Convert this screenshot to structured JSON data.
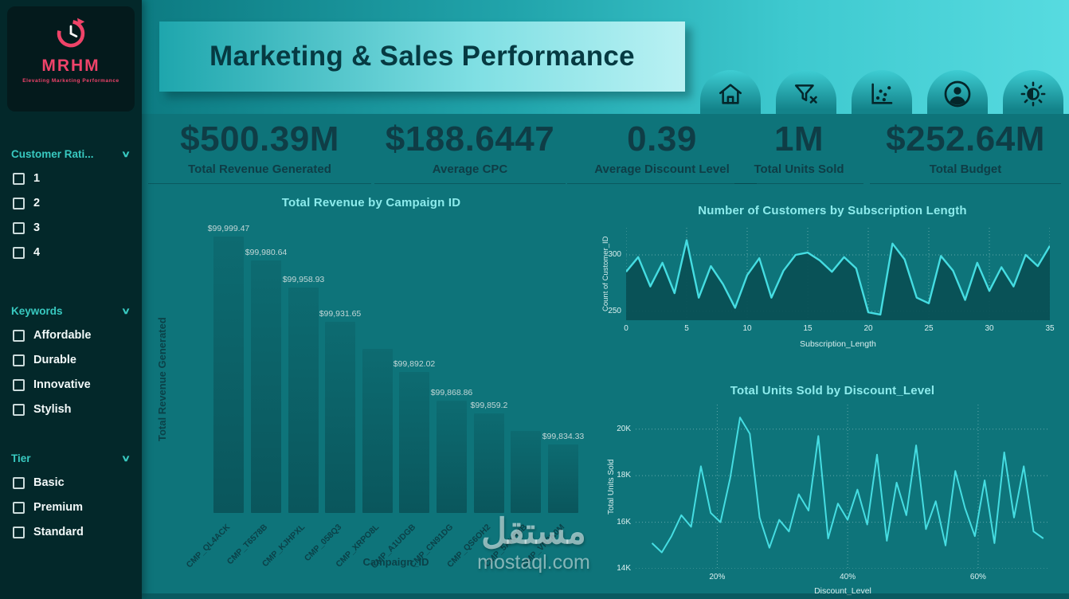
{
  "colors": {
    "background": "#0e747a",
    "sidebar": "#03282a",
    "accent_cyan": "#45dde2",
    "chart_title": "#8debec",
    "dark_text": "#0f3d46",
    "bar_fill": "#0b5e64",
    "brand_pink": "#f0436a"
  },
  "sidebar": {
    "logo": {
      "brand": "MRHM",
      "tagline": "Elevating Marketing Performance"
    },
    "sections": [
      {
        "label": "Customer Rati...",
        "items": [
          "1",
          "2",
          "3",
          "4"
        ]
      },
      {
        "label": "Keywords",
        "items": [
          "Affordable",
          "Durable",
          "Innovative",
          "Stylish"
        ]
      },
      {
        "label": "Tier",
        "items": [
          "Basic",
          "Premium",
          "Standard"
        ]
      }
    ]
  },
  "header": {
    "title": "Marketing & Sales Performance",
    "nav_icons": [
      "home-icon",
      "filter-clear-icon",
      "scatter-chart-icon",
      "user-icon",
      "brightness-icon"
    ]
  },
  "kpis": [
    {
      "value": "$500.39M",
      "label": "Total Revenue Generated"
    },
    {
      "value": "$188.6447",
      "label": "Average CPC"
    },
    {
      "value": "0.39",
      "label": "Average Discount Level"
    },
    {
      "value": "1M",
      "label": "Total Units Sold"
    },
    {
      "value": "$252.64M",
      "label": "Total Budget"
    }
  ],
  "watermark": {
    "arabic": "مستقل",
    "latin": "mostaql.com"
  },
  "chart_data": [
    {
      "type": "bar",
      "title": "Total Revenue by Campaign ID",
      "xlabel": "Campaign_ID",
      "ylabel": "Total Revenue Generated",
      "categories": [
        "CMP_QL4ACK",
        "CMP_T6578B",
        "CMP_KJHPXL",
        "CMP_058Q3",
        "CMP_XRPO8L",
        "CMP_A1UDGB",
        "CMP_CN91DG",
        "CMP_QS6OH2",
        "CMP_5AKR8B",
        "CMP_VN2K0M"
      ],
      "values": [
        99999.47,
        99980.64,
        99958.93,
        99931.65,
        99910.5,
        99892.02,
        99868.86,
        99859.2,
        99845.0,
        99834.33
      ],
      "data_labels": [
        "$99,999.47",
        "$99,980.64",
        "$99,958.93",
        "$99,931.65",
        "",
        "$99,892.02",
        "$99,868.86",
        "$99,859.2",
        "",
        "$99,834.33"
      ],
      "ylim": [
        99780,
        100005
      ],
      "grid": false,
      "legend": false
    },
    {
      "type": "area",
      "title": "Number of Customers by Subscription Length",
      "xlabel": "Subscription_Length",
      "ylabel": "Count of Customer_ID",
      "x": [
        0,
        1,
        2,
        3,
        4,
        5,
        6,
        7,
        8,
        9,
        10,
        11,
        12,
        13,
        14,
        15,
        16,
        17,
        18,
        19,
        20,
        21,
        22,
        23,
        24,
        25,
        26,
        27,
        28,
        29,
        30,
        31,
        32,
        33,
        34,
        35
      ],
      "values": [
        285,
        298,
        272,
        293,
        266,
        313,
        262,
        290,
        274,
        253,
        282,
        297,
        262,
        286,
        300,
        302,
        295,
        285,
        298,
        288,
        249,
        247,
        310,
        296,
        262,
        257,
        299,
        286,
        260,
        293,
        268,
        289,
        272,
        300,
        290,
        308
      ],
      "xlim": [
        0,
        35
      ],
      "ylim": [
        242,
        324
      ],
      "xticks": [
        0,
        5,
        10,
        15,
        20,
        25,
        30,
        35
      ],
      "xtick_labels": [
        "0",
        "5",
        "10",
        "15",
        "20",
        "25",
        "30",
        "35"
      ],
      "yticks": [
        250,
        300
      ],
      "ytick_labels": [
        "250",
        "300"
      ],
      "grid": "dotted",
      "legend": false
    },
    {
      "type": "line",
      "title": "Total Units Sold by Discount_Level",
      "xlabel": "Discount_Level",
      "ylabel": "Total Units Sold",
      "x": [
        10,
        11.5,
        13,
        14.5,
        16,
        17.5,
        19,
        20.5,
        22,
        23.5,
        25,
        26.5,
        28,
        29.5,
        31,
        32.5,
        34,
        35.5,
        37,
        38.5,
        40,
        41.5,
        43,
        44.5,
        46,
        47.5,
        49,
        50.5,
        52,
        53.5,
        55,
        56.5,
        58,
        59.5,
        61,
        62.5,
        64,
        65.5,
        67,
        68.5,
        70
      ],
      "values": [
        15100,
        14700,
        15400,
        16300,
        15800,
        18400,
        16400,
        16000,
        17900,
        20500,
        19800,
        16200,
        14900,
        16100,
        15600,
        17200,
        16500,
        19700,
        15300,
        16800,
        16100,
        17400,
        15900,
        18900,
        15200,
        17700,
        16300,
        19300,
        15700,
        16900,
        15000,
        18200,
        16600,
        15400,
        17800,
        15100,
        19000,
        16200,
        18400,
        15600,
        15300
      ],
      "xlim": [
        7.5,
        71
      ],
      "ylim": [
        14000,
        21050
      ],
      "xticks": [
        20,
        40,
        60
      ],
      "xtick_labels": [
        "20%",
        "40%",
        "60%"
      ],
      "yticks": [
        14000,
        16000,
        18000,
        20000
      ],
      "ytick_labels": [
        "14K",
        "16K",
        "18K",
        "20K"
      ],
      "grid": "dotted",
      "legend": false
    }
  ]
}
